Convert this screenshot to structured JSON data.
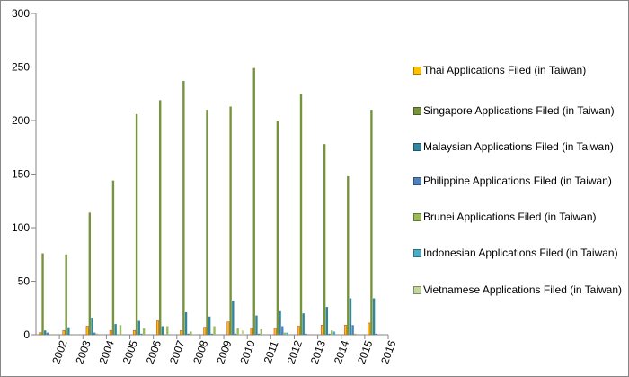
{
  "chart_data": {
    "type": "bar",
    "categories": [
      "2002",
      "2003",
      "2004",
      "2005",
      "2006",
      "2007",
      "2008",
      "2009",
      "2010",
      "2011",
      "2012",
      "2013",
      "2014",
      "2015",
      "2016"
    ],
    "ylim": [
      0,
      300
    ],
    "y_ticks": [
      0,
      50,
      100,
      150,
      200,
      250,
      300
    ],
    "grid": false,
    "legend_position": "right",
    "series": [
      {
        "name": "Thai Applications Filed (in Taiwan)",
        "color": "#FFC000",
        "values": [
          2,
          4,
          8,
          4,
          4,
          13,
          4,
          7,
          12,
          6,
          6,
          8,
          9,
          9,
          11
        ]
      },
      {
        "name": "Singapore Applications Filed (in Taiwan)",
        "color": "#77933C",
        "values": [
          76,
          75,
          114,
          144,
          206,
          219,
          237,
          210,
          213,
          249,
          200,
          225,
          178,
          148,
          210
        ]
      },
      {
        "name": "Malaysian Applications Filed (in Taiwan)",
        "color": "#31859C",
        "values": [
          4,
          7,
          16,
          10,
          13,
          8,
          21,
          17,
          32,
          18,
          22,
          20,
          26,
          34,
          34
        ]
      },
      {
        "name": "Philippine Applications Filed (in Taiwan)",
        "color": "#4F81BD",
        "values": [
          2,
          0,
          2,
          0,
          1,
          0,
          1,
          1,
          1,
          1,
          8,
          1,
          1,
          9,
          1
        ]
      },
      {
        "name": "Brunei Applications Filed (in Taiwan)",
        "color": "#9BBB59",
        "values": [
          0,
          0,
          1,
          9,
          6,
          8,
          3,
          8,
          6,
          5,
          2,
          0,
          4,
          1,
          0
        ]
      },
      {
        "name": "Indonesian Applications Filed (in Taiwan)",
        "color": "#4BACC6",
        "values": [
          0,
          0,
          0,
          0,
          0,
          0,
          0,
          0,
          0,
          0,
          2,
          0,
          3,
          0,
          0
        ]
      },
      {
        "name": "Vietnamese Applications Filed (in Taiwan)",
        "color": "#C3D69B",
        "values": [
          0,
          0,
          0,
          0,
          0,
          0,
          0,
          0,
          4,
          0,
          0,
          0,
          0,
          0,
          0
        ]
      }
    ]
  }
}
